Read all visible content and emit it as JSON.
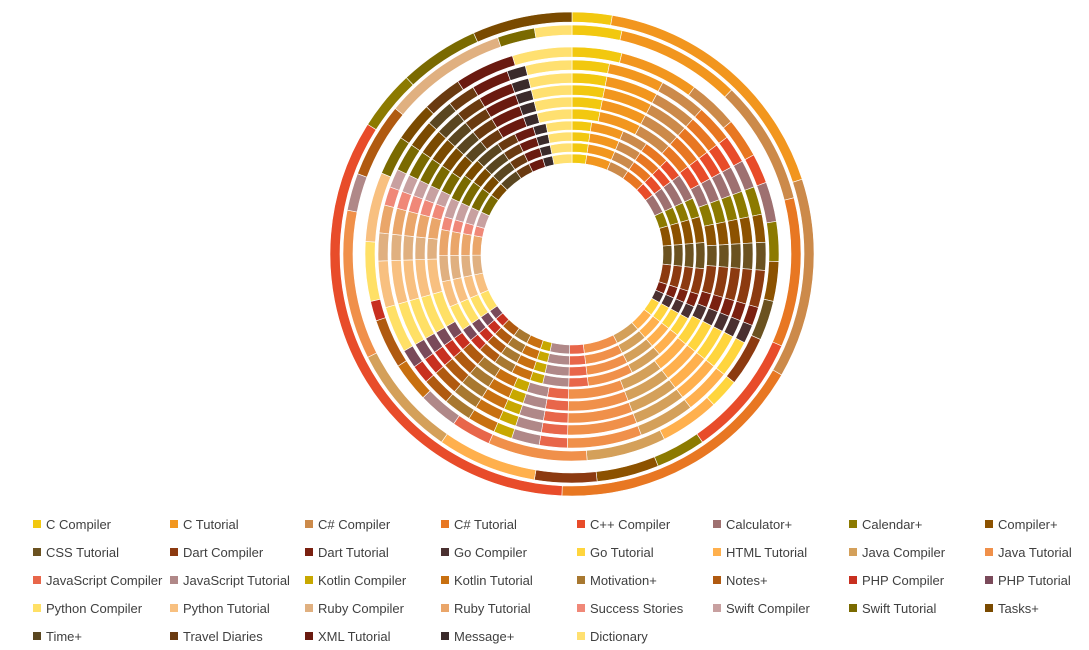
{
  "chart_data": {
    "type": "doughnut",
    "title": "",
    "legend_position": "bottom",
    "categories": [
      "C Compiler",
      "C Tutorial",
      "C# Compiler",
      "C# Tutorial",
      "C++ Compiler",
      "Calculator+",
      "Calendar+",
      "Compiler+",
      "CSS Tutorial",
      "Dart Compiler",
      "Dart Tutorial",
      "Go Compiler",
      "Go Tutorial",
      "HTML Tutorial",
      "Java Compiler",
      "Java Tutorial",
      "JavaScript Compiler",
      "JavaScript Tutorial",
      "Kotlin Compiler",
      "Kotlin Tutorial",
      "Motivation+",
      "Notes+",
      "PHP Compiler",
      "PHP Tutorial",
      "Python Compiler",
      "Python Tutorial",
      "Ruby Compiler",
      "Ruby Tutorial",
      "Success Stories",
      "Swift Compiler",
      "Swift Tutorial",
      "Tasks+",
      "Time+",
      "Travel Diaries",
      "XML Tutorial",
      "Message+",
      "Dictionary"
    ],
    "colors": [
      "#F2C80F",
      "#F2961E",
      "#CC8A4A",
      "#E87722",
      "#E84C2A",
      "#9E7070",
      "#8C7A00",
      "#8C5200",
      "#6B5220",
      "#8C3A10",
      "#7A2010",
      "#4A3030",
      "#FFD53D",
      "#FFB04D",
      "#D4A05A",
      "#F0904A",
      "#E8664A",
      "#B08888",
      "#C8A800",
      "#C87010",
      "#A87830",
      "#B05A10",
      "#C83020",
      "#7A4A5A",
      "#FFE066",
      "#F8C080",
      "#E0B080",
      "#EAA66A",
      "#F08878",
      "#C8A0A0",
      "#7A6A00",
      "#7A4A00",
      "#5A4620",
      "#6A3A10",
      "#6A1A10",
      "#3A2A2A",
      "#FFE070"
    ],
    "series": [
      {
        "values": [
          2,
          13,
          10,
          13,
          25,
          0,
          3,
          0,
          0,
          0,
          0,
          0,
          0,
          0,
          0,
          0,
          0,
          0,
          0,
          0,
          0,
          0,
          0,
          0,
          0,
          0,
          0,
          0,
          0,
          0,
          4,
          5,
          0,
          0,
          0,
          0,
          0
        ]
      },
      {
        "values": [
          4,
          10,
          10,
          12,
          10,
          0,
          4,
          5,
          0,
          5,
          0,
          0,
          0,
          8,
          9,
          12,
          0,
          3,
          0,
          0,
          0,
          6,
          0,
          0,
          0,
          0,
          10,
          0,
          0,
          0,
          3,
          0,
          0,
          0,
          0,
          0,
          3
        ]
      },
      {
        "values": [
          5,
          8,
          5,
          4,
          3,
          4,
          4,
          4,
          4,
          5,
          0,
          0,
          3,
          6,
          8,
          10,
          4,
          4,
          0,
          4,
          0,
          5,
          2,
          0,
          6,
          7,
          0,
          0,
          0,
          0,
          4,
          4,
          0,
          4,
          6,
          0,
          6
        ]
      },
      {
        "values": [
          4,
          6,
          5,
          4,
          3,
          3,
          3,
          3,
          3,
          4,
          2,
          2,
          4,
          5,
          6,
          8,
          3,
          3,
          2,
          3,
          3,
          3,
          2,
          2,
          5,
          5,
          3,
          3,
          2,
          2,
          3,
          3,
          3,
          3,
          4,
          2,
          5
        ]
      },
      {
        "values": [
          4,
          6,
          5,
          4,
          3,
          3,
          3,
          3,
          3,
          4,
          2,
          2,
          4,
          5,
          6,
          8,
          3,
          3,
          2,
          3,
          3,
          3,
          2,
          2,
          5,
          5,
          3,
          3,
          2,
          2,
          3,
          3,
          3,
          3,
          4,
          2,
          5
        ]
      },
      {
        "values": [
          4,
          6,
          5,
          4,
          3,
          3,
          3,
          3,
          3,
          4,
          2,
          2,
          4,
          5,
          6,
          8,
          3,
          3,
          2,
          3,
          3,
          3,
          2,
          2,
          5,
          5,
          3,
          3,
          2,
          2,
          3,
          3,
          3,
          3,
          4,
          2,
          5
        ]
      },
      {
        "values": [
          4,
          6,
          5,
          4,
          3,
          3,
          3,
          3,
          3,
          4,
          2,
          2,
          4,
          5,
          6,
          8,
          3,
          3,
          2,
          3,
          3,
          3,
          2,
          2,
          5,
          5,
          3,
          3,
          2,
          2,
          3,
          3,
          3,
          3,
          4,
          2,
          5
        ]
      },
      {
        "values": [
          4,
          6,
          5,
          4,
          3,
          3,
          3,
          3,
          3,
          4,
          2,
          2,
          4,
          5,
          6,
          8,
          3,
          3,
          2,
          3,
          3,
          3,
          2,
          2,
          5,
          5,
          3,
          3,
          2,
          2,
          3,
          3,
          3,
          3,
          4,
          2,
          5
        ]
      },
      {
        "values": [
          3,
          5,
          4,
          4,
          3,
          4,
          3,
          4,
          4,
          4,
          2,
          2,
          3,
          4,
          5,
          7,
          3,
          4,
          2,
          3,
          3,
          3,
          2,
          2,
          4,
          4,
          4,
          4,
          2,
          3,
          4,
          3,
          4,
          3,
          3,
          2,
          4
        ]
      },
      {
        "values": [
          3,
          5,
          4,
          4,
          3,
          4,
          3,
          4,
          4,
          4,
          2,
          2,
          3,
          4,
          5,
          7,
          3,
          4,
          2,
          3,
          3,
          3,
          2,
          2,
          4,
          4,
          4,
          4,
          2,
          3,
          4,
          3,
          4,
          3,
          3,
          2,
          4
        ]
      },
      {
        "values": [
          3,
          5,
          4,
          4,
          3,
          4,
          3,
          4,
          4,
          4,
          2,
          2,
          3,
          4,
          5,
          7,
          3,
          4,
          2,
          3,
          3,
          3,
          2,
          2,
          4,
          4,
          4,
          4,
          2,
          3,
          4,
          3,
          4,
          3,
          3,
          2,
          4
        ]
      },
      {
        "values": [
          3,
          5,
          4,
          4,
          3,
          4,
          3,
          4,
          4,
          4,
          2,
          2,
          3,
          4,
          5,
          7,
          3,
          4,
          2,
          3,
          3,
          3,
          2,
          2,
          4,
          4,
          4,
          4,
          2,
          3,
          4,
          3,
          4,
          3,
          3,
          2,
          4
        ]
      }
    ]
  },
  "legend": {
    "items": [
      "C Compiler",
      "C Tutorial",
      "C# Compiler",
      "C# Tutorial",
      "C++ Compiler",
      "Calculator+",
      "Calendar+",
      "Compiler+",
      "CSS Tutorial",
      "Dart Compiler",
      "Dart Tutorial",
      "Go Compiler",
      "Go Tutorial",
      "HTML Tutorial",
      "Java Compiler",
      "Java Tutorial",
      "JavaScript Compiler",
      "JavaScript Tutorial",
      "Kotlin Compiler",
      "Kotlin Tutorial",
      "Motivation+",
      "Notes+",
      "PHP Compiler",
      "PHP Tutorial",
      "Python Compiler",
      "Python Tutorial",
      "Ruby Compiler",
      "Ruby Tutorial",
      "Success Stories",
      "Swift Compiler",
      "Swift Tutorial",
      "Tasks+",
      "Time+",
      "Travel Diaries",
      "XML Tutorial",
      "Message+",
      "Dictionary"
    ]
  }
}
